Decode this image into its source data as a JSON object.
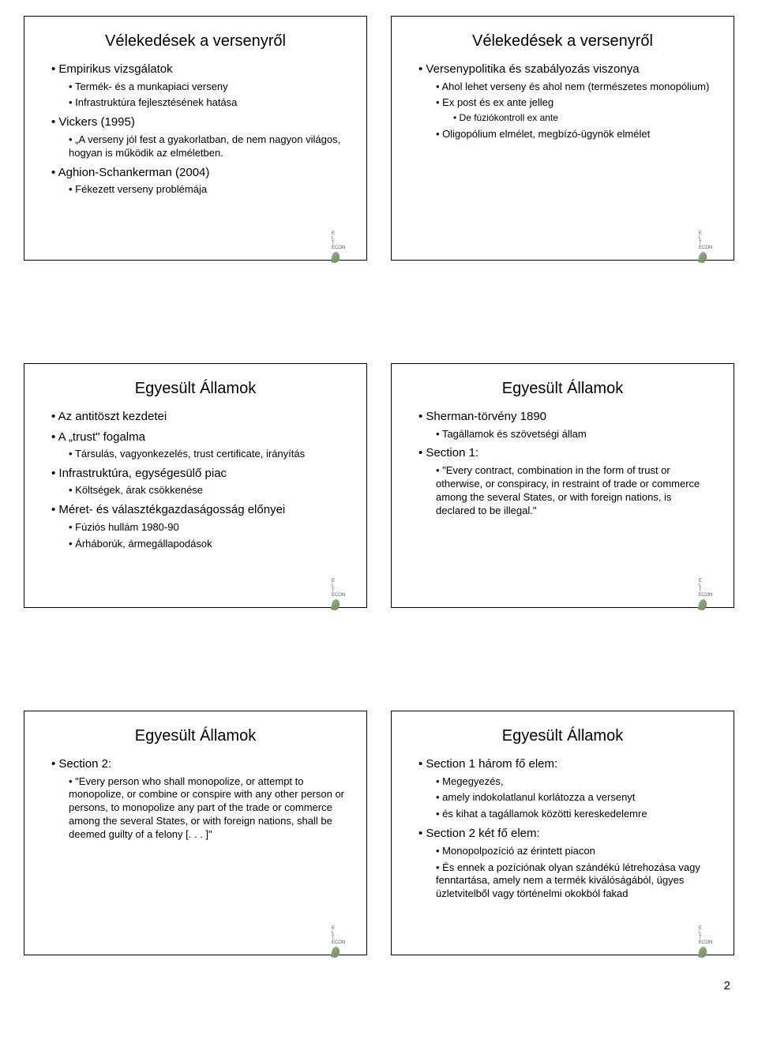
{
  "page_number": "2",
  "logo": {
    "line1": "E",
    "line2": "L",
    "line3": "T",
    "line4": "ECON"
  },
  "slides": [
    {
      "title": "Vélekedések a versenyről",
      "items": [
        {
          "level": 1,
          "text": "Empirikus vizsgálatok"
        },
        {
          "level": 2,
          "text": "Termék- és a munkapiaci verseny"
        },
        {
          "level": 2,
          "text": "Infrastruktúra fejlesztésének hatása"
        },
        {
          "level": 1,
          "text": "Vickers (1995)"
        },
        {
          "level": 2,
          "text": "„A verseny jól fest a gyakorlatban, de nem nagyon világos, hogyan is működik az elméletben."
        },
        {
          "level": 1,
          "text": "Aghion-Schankerman (2004)"
        },
        {
          "level": 2,
          "text": "Fékezett verseny problémája"
        }
      ]
    },
    {
      "title": "Vélekedések a versenyről",
      "items": [
        {
          "level": 1,
          "text": "Versenypolitika és szabályozás viszonya"
        },
        {
          "level": 2,
          "text": "Ahol lehet verseny és ahol nem (természetes monopólium)"
        },
        {
          "level": 2,
          "text": "Ex post és ex ante jelleg"
        },
        {
          "level": 3,
          "text": "De fúziókontroll ex ante"
        },
        {
          "level": 2,
          "text": "Oligopólium elmélet, megbízó-ügynök elmélet"
        }
      ]
    },
    {
      "title": "Egyesült Államok",
      "items": [
        {
          "level": 1,
          "text": "Az antitöszt kezdetei"
        },
        {
          "level": 1,
          "text": "A „trust\" fogalma"
        },
        {
          "level": 2,
          "text": "Társulás, vagyonkezelés, trust certificate, irányítás"
        },
        {
          "level": 1,
          "text": "Infrastruktúra, egységesülő piac"
        },
        {
          "level": 2,
          "text": "Költségek, árak csökkenése"
        },
        {
          "level": 1,
          "text": "Méret- és választékgazdaságosság előnyei"
        },
        {
          "level": 2,
          "text": "Fúziós hullám 1980-90"
        },
        {
          "level": 2,
          "text": "Árháborúk, ármegállapodások"
        }
      ]
    },
    {
      "title": "Egyesült Államok",
      "items": [
        {
          "level": 1,
          "text": "Sherman-törvény 1890"
        },
        {
          "level": 2,
          "text": "Tagállamok és szövetségi állam"
        },
        {
          "level": 1,
          "text": "Section 1:"
        },
        {
          "level": 2,
          "text": "\"Every contract, combination in the form of trust or otherwise, or conspiracy, in restraint of trade or commerce among the several States, or with foreign nations, is declared to be illegal.\""
        }
      ]
    },
    {
      "title": "Egyesült Államok",
      "items": [
        {
          "level": 1,
          "text": "Section 2:"
        },
        {
          "level": 2,
          "text": "\"Every person who shall monopolize, or attempt to monopolize, or combine or conspire with any other person or persons, to monopolize any part of the trade or commerce among the several States, or with foreign nations, shall be deemed guilty of a felony [. . . ]\""
        }
      ]
    },
    {
      "title": "Egyesült Államok",
      "items": [
        {
          "level": 1,
          "text": "Section 1 három fő elem:"
        },
        {
          "level": 2,
          "text": "Megegyezés,"
        },
        {
          "level": 2,
          "text": "amely indokolatlanul korlátozza a versenyt"
        },
        {
          "level": 2,
          "text": "és kihat a tagállamok közötti kereskedelemre"
        },
        {
          "level": 1,
          "text": "Section 2 két fő elem:"
        },
        {
          "level": 2,
          "text": "Monopolpozíció az érintett piacon"
        },
        {
          "level": 2,
          "text": "És ennek a pozíciónak olyan szándékú létrehozása vagy fenntartása, amely nem a termék kiválóságából, ügyes üzletvitelből vagy történelmi okokból fakad"
        }
      ]
    }
  ]
}
